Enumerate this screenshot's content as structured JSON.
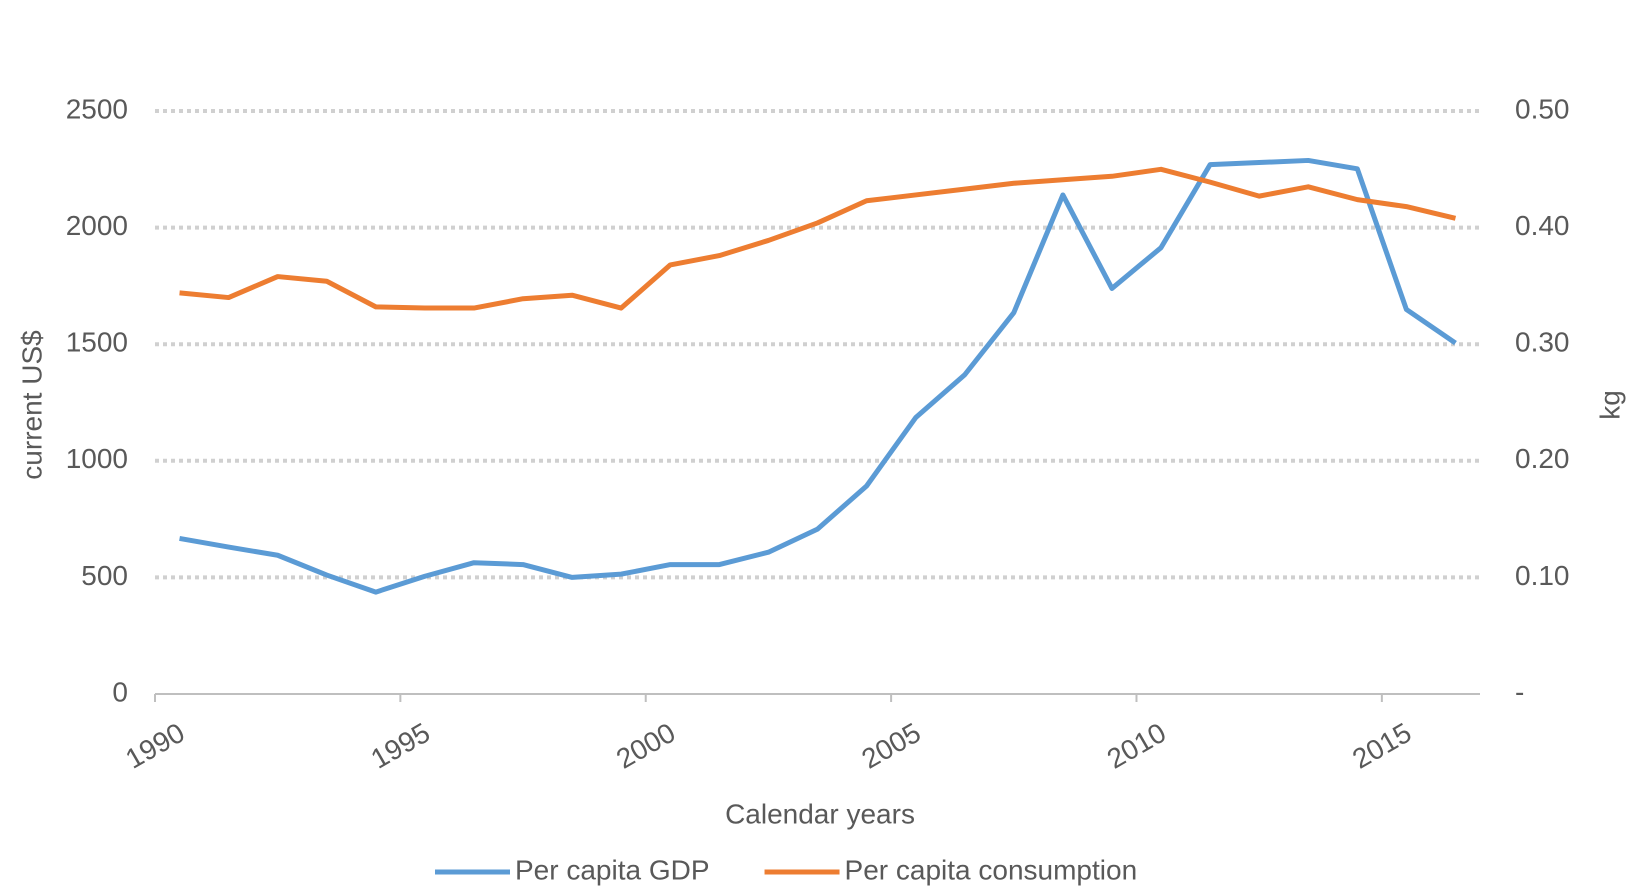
{
  "chart_data": {
    "type": "line",
    "x_label": "Calendar years",
    "y_label": "current US$",
    "y2_label": "kg",
    "x": [
      1990.5,
      1991.5,
      1992.5,
      1993.5,
      1994.5,
      1995.5,
      1996.5,
      1997.5,
      1998.5,
      1999.5,
      2000.5,
      2001.5,
      2002.5,
      2003.5,
      2004.5,
      2005.5,
      2006.5,
      2007.5,
      2008.5,
      2009.5,
      2010.5,
      2011.5,
      2012.5,
      2013.5,
      2014.5,
      2015.5,
      2016.5
    ],
    "series": [
      {
        "name": "Per capita GDP",
        "color": "#5b9bd5",
        "axis": "y",
        "values": [
          667,
          630,
          595,
          510,
          437,
          505,
          563,
          555,
          500,
          514,
          555,
          555,
          608,
          707,
          892,
          1185,
          1369,
          1635,
          2140,
          1739,
          1914,
          2270,
          2279,
          2288,
          2252,
          1649,
          1505
        ]
      },
      {
        "name": "Per capita consumption",
        "color": "#ed7d31",
        "axis": "y2",
        "values": [
          0.344,
          0.34,
          0.358,
          0.354,
          0.332,
          0.331,
          0.331,
          0.339,
          0.342,
          0.331,
          0.368,
          0.376,
          0.389,
          0.404,
          0.423,
          0.428,
          0.433,
          0.438,
          0.441,
          0.444,
          0.45,
          0.439,
          0.427,
          0.435,
          0.424,
          0.418,
          0.408
        ]
      }
    ],
    "xlim": [
      1990,
      2017
    ],
    "xticks": [
      1990,
      1995,
      2000,
      2005,
      2010,
      2015
    ],
    "ylim": [
      0,
      2500
    ],
    "yticks": [
      0,
      500,
      1000,
      1500,
      2000,
      2500
    ],
    "y2lim": [
      0,
      0.5
    ],
    "y2ticks": [
      {
        "value": 0,
        "label": "-"
      },
      {
        "value": 0.1,
        "label": "0.10"
      },
      {
        "value": 0.2,
        "label": "0.20"
      },
      {
        "value": 0.3,
        "label": "0.30"
      },
      {
        "value": 0.4,
        "label": "0.40"
      },
      {
        "value": 0.5,
        "label": "0.50"
      }
    ],
    "grid": true,
    "legend": "bottom"
  }
}
